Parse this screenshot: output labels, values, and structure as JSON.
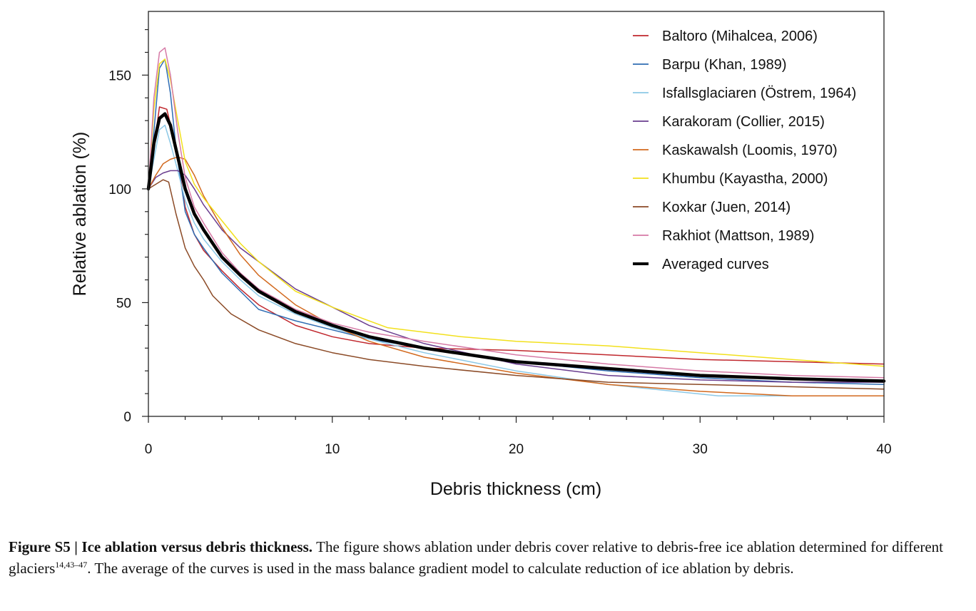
{
  "chart_data": {
    "type": "line",
    "title": "",
    "xlabel": "Debris thickness (cm)",
    "ylabel": "Relative ablation (%)",
    "xlim": [
      0,
      40
    ],
    "ylim": [
      0,
      178
    ],
    "xticks": [
      0,
      10,
      20,
      30,
      40
    ],
    "yticks": [
      0,
      50,
      100,
      150
    ],
    "legend_position": "top-right",
    "grid": false,
    "series": [
      {
        "name": "Baltoro (Mihalcea, 2006)",
        "color": "#c0272d",
        "width": 1.5,
        "x": [
          0,
          0.3,
          0.6,
          1.0,
          1.5,
          2.0,
          2.5,
          3.0,
          4.0,
          5.0,
          6.0,
          8.0,
          10.0,
          12.0,
          15.0,
          20.0,
          25.0,
          30.0,
          35.0,
          40.0
        ],
        "y": [
          100,
          118,
          136,
          135,
          118,
          92,
          80,
          73,
          64,
          56,
          49,
          40,
          35,
          32,
          30,
          29,
          27,
          25,
          24,
          23
        ]
      },
      {
        "name": "Barpu (Khan, 1989)",
        "color": "#2f6db3",
        "width": 1.5,
        "x": [
          0,
          0.3,
          0.6,
          0.9,
          1.2,
          1.5,
          2.0,
          2.5,
          3.0,
          4.0,
          5.0,
          6.0,
          8.0,
          10.0,
          12.0,
          15.0,
          20.0,
          25.0,
          30.0,
          35.0,
          40.0
        ],
        "y": [
          100,
          125,
          153,
          157,
          142,
          118,
          90,
          80,
          74,
          63,
          55,
          47,
          42,
          38,
          34,
          30,
          24,
          20,
          17,
          15,
          14
        ]
      },
      {
        "name": "Isfallsglaciaren (Östrem, 1964)",
        "color": "#8cc8e6",
        "width": 1.5,
        "x": [
          0,
          0.3,
          0.6,
          0.9,
          1.2,
          1.6,
          2.0,
          2.5,
          3.0,
          4.0,
          5.0,
          6.0,
          8.0,
          10.0,
          12.0,
          15.0,
          20.0,
          25.0,
          31.0,
          35.0,
          40.0
        ],
        "y": [
          100,
          113,
          126,
          128,
          120,
          108,
          95,
          85,
          78,
          68,
          60,
          53,
          45,
          39,
          34,
          28,
          20,
          14,
          9,
          9,
          9
        ]
      },
      {
        "name": "Karakoram (Collier, 2015)",
        "color": "#6a3d8f",
        "width": 1.5,
        "x": [
          0,
          0.4,
          0.8,
          1.2,
          1.6,
          2.0,
          2.5,
          3.0,
          4.0,
          5.0,
          6.0,
          8.0,
          10.0,
          12.0,
          15.0,
          20.0,
          25.0,
          30.0,
          35.0,
          40.0
        ],
        "y": [
          100,
          105,
          107,
          108,
          108,
          106,
          100,
          93,
          82,
          74,
          68,
          56,
          48,
          40,
          32,
          23,
          18,
          16,
          15,
          15
        ]
      },
      {
        "name": "Kaskawalsh (Loomis, 1970)",
        "color": "#d2691e",
        "width": 1.5,
        "x": [
          0,
          0.4,
          0.8,
          1.2,
          1.6,
          2.0,
          2.5,
          3.0,
          4.0,
          5.0,
          6.0,
          8.0,
          10.0,
          12.0,
          15.0,
          20.0,
          25.0,
          30.0,
          35.0,
          40.0
        ],
        "y": [
          100,
          106,
          111,
          113,
          114,
          113,
          106,
          97,
          83,
          71,
          62,
          49,
          40,
          33,
          26,
          19,
          14,
          11,
          9,
          9
        ]
      },
      {
        "name": "Khumbu (Kayastha, 2000)",
        "color": "#f2e01c",
        "width": 1.5,
        "x": [
          0,
          0.3,
          0.6,
          0.9,
          1.2,
          1.6,
          2.0,
          2.5,
          3.0,
          4.0,
          5.0,
          6.0,
          8.0,
          10.0,
          13.0,
          17.0,
          20.0,
          25.0,
          30.0,
          35.0,
          40.0
        ],
        "y": [
          100,
          135,
          155,
          157,
          148,
          130,
          112,
          102,
          96,
          86,
          76,
          68,
          55,
          48,
          39,
          35,
          33,
          31,
          28,
          25,
          22
        ]
      },
      {
        "name": "Koxkar (Juen, 2014)",
        "color": "#8b4a26",
        "width": 1.5,
        "x": [
          0,
          0.4,
          0.8,
          1.1,
          1.5,
          2.0,
          2.5,
          3.0,
          3.5,
          4.5,
          6.0,
          8.0,
          10.0,
          12.0,
          15.0,
          20.0,
          25.0,
          30.0,
          35.0,
          40.0
        ],
        "y": [
          100,
          102,
          104,
          103,
          89,
          74,
          66,
          60,
          53,
          45,
          38,
          32,
          28,
          25,
          22,
          18,
          15,
          14,
          13,
          12
        ]
      },
      {
        "name": "Rakhiot (Mattson, 1989)",
        "color": "#d67aa6",
        "width": 1.5,
        "x": [
          0,
          0.3,
          0.6,
          0.9,
          1.2,
          1.6,
          2.0,
          2.5,
          3.0,
          4.0,
          5.0,
          6.0,
          8.0,
          10.0,
          12.0,
          15.0,
          20.0,
          25.0,
          30.0,
          35.0,
          40.0
        ],
        "y": [
          100,
          140,
          160,
          162,
          150,
          125,
          105,
          92,
          85,
          72,
          63,
          56,
          47,
          41,
          37,
          33,
          27,
          23,
          20,
          18,
          17
        ]
      },
      {
        "name": "Averaged curves",
        "color": "#000000",
        "width": 4.5,
        "x": [
          0,
          0.3,
          0.6,
          0.9,
          1.2,
          1.6,
          2.0,
          2.5,
          3.0,
          4.0,
          5.0,
          6.0,
          8.0,
          10.0,
          12.0,
          15.0,
          20.0,
          25.0,
          30.0,
          35.0,
          40.0
        ],
        "y": [
          100,
          120,
          131,
          133,
          128,
          114,
          100,
          89,
          82,
          70,
          62,
          55,
          46,
          40,
          35,
          30,
          24,
          21,
          18,
          16.5,
          15.5
        ]
      }
    ]
  },
  "caption": {
    "label": "Figure S5 | Ice ablation versus debris thickness.",
    "text1": " The figure shows ablation under debris cover relative to debris-free ice ablation determined for different glaciers",
    "refs": "14,43–47",
    "text2": ". The average of the curves is used in the mass balance gradient model to calculate reduction of ice ablation by debris."
  }
}
